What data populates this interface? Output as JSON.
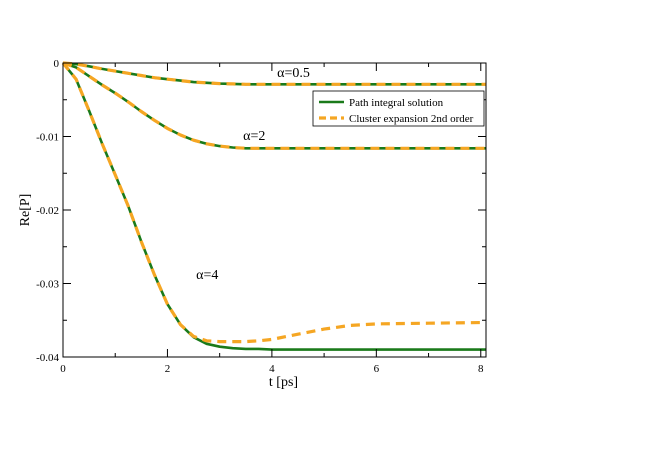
{
  "chart_data": {
    "type": "line",
    "title": "",
    "xlabel": "t [ps]",
    "ylabel": "Re[P]",
    "xlim": [
      0,
      8.1
    ],
    "ylim": [
      -0.04,
      0
    ],
    "xticks": [
      0,
      2,
      4,
      6,
      8
    ],
    "xtick_labels": [
      "0",
      "2",
      "4",
      "6",
      "8"
    ],
    "yticks": [
      0,
      -0.01,
      -0.02,
      -0.03,
      -0.04
    ],
    "ytick_labels": [
      "0",
      "-0.01",
      "-0.02",
      "-0.03",
      "-0.04"
    ],
    "grid": false,
    "legend": {
      "placement": "top-right",
      "entries": [
        {
          "label": "Path integral solution",
          "color": "#1a7a1a",
          "style": "solid"
        },
        {
          "label": "Cluster expansion 2nd order",
          "color": "#f5a623",
          "style": "dashed"
        }
      ]
    },
    "annotations": [
      {
        "text": "α=0.5",
        "x": 4.1,
        "y": -0.0019
      },
      {
        "text": "α=2",
        "x": 3.45,
        "y": -0.0105
      },
      {
        "text": "α=4",
        "x": 2.55,
        "y": -0.0294
      }
    ],
    "series": [
      {
        "group": "α=0.5",
        "method": "path_integral",
        "color": "#1a7a1a",
        "style": "solid",
        "x": [
          0,
          0.25,
          0.5,
          0.75,
          1,
          1.25,
          1.5,
          1.75,
          2,
          2.25,
          2.5,
          2.75,
          3,
          3.25,
          3.5,
          4,
          5,
          6,
          7,
          8.1
        ],
        "y": [
          0,
          -0.00015,
          -0.00045,
          -0.0008,
          -0.0011,
          -0.0014,
          -0.0017,
          -0.002,
          -0.0022,
          -0.0024,
          -0.0026,
          -0.0027,
          -0.0028,
          -0.00285,
          -0.0029,
          -0.0029,
          -0.0029,
          -0.0029,
          -0.0029,
          -0.0029
        ]
      },
      {
        "group": "α=0.5",
        "method": "cluster_expansion",
        "color": "#f5a623",
        "style": "dashed",
        "x": [
          0,
          0.25,
          0.5,
          0.75,
          1,
          1.25,
          1.5,
          1.75,
          2,
          2.25,
          2.5,
          2.75,
          3,
          3.25,
          3.5,
          4,
          5,
          6,
          7,
          8.1
        ],
        "y": [
          0,
          -0.00015,
          -0.00045,
          -0.0008,
          -0.0011,
          -0.0014,
          -0.0017,
          -0.002,
          -0.0022,
          -0.0024,
          -0.0026,
          -0.0027,
          -0.0028,
          -0.00285,
          -0.0029,
          -0.0029,
          -0.0029,
          -0.0029,
          -0.0029,
          -0.0029
        ]
      },
      {
        "group": "α=2",
        "method": "path_integral",
        "color": "#1a7a1a",
        "style": "solid",
        "x": [
          0,
          0.25,
          0.5,
          0.75,
          1,
          1.25,
          1.5,
          1.75,
          2,
          2.25,
          2.5,
          2.75,
          3,
          3.25,
          3.5,
          3.75,
          4,
          5,
          6,
          7,
          8.1
        ],
        "y": [
          0,
          -0.0006,
          -0.0018,
          -0.003,
          -0.0041,
          -0.0053,
          -0.0066,
          -0.0078,
          -0.0089,
          -0.0098,
          -0.0105,
          -0.011,
          -0.0113,
          -0.0115,
          -0.0116,
          -0.0116,
          -0.0116,
          -0.0116,
          -0.0116,
          -0.0116,
          -0.0116
        ]
      },
      {
        "group": "α=2",
        "method": "cluster_expansion",
        "color": "#f5a623",
        "style": "dashed",
        "x": [
          0,
          0.25,
          0.5,
          0.75,
          1,
          1.25,
          1.5,
          1.75,
          2,
          2.25,
          2.5,
          2.75,
          3,
          3.25,
          3.5,
          3.75,
          4,
          5,
          6,
          7,
          8.1
        ],
        "y": [
          0,
          -0.0006,
          -0.0018,
          -0.003,
          -0.0041,
          -0.0053,
          -0.0066,
          -0.0078,
          -0.0089,
          -0.0098,
          -0.0105,
          -0.011,
          -0.0113,
          -0.0115,
          -0.0116,
          -0.0116,
          -0.0116,
          -0.0116,
          -0.0116,
          -0.0116,
          -0.0116
        ]
      },
      {
        "group": "α=4",
        "method": "path_integral",
        "color": "#1a7a1a",
        "style": "solid",
        "x": [
          0,
          0.25,
          0.5,
          0.75,
          1,
          1.25,
          1.5,
          1.75,
          2,
          2.25,
          2.5,
          2.75,
          3,
          3.25,
          3.5,
          3.75,
          4,
          4.5,
          5,
          6,
          7,
          8.1
        ],
        "y": [
          0,
          -0.0022,
          -0.0065,
          -0.011,
          -0.0152,
          -0.0195,
          -0.0243,
          -0.0288,
          -0.0328,
          -0.0356,
          -0.0373,
          -0.0382,
          -0.0386,
          -0.0388,
          -0.0389,
          -0.0389,
          -0.039,
          -0.039,
          -0.039,
          -0.039,
          -0.039,
          -0.039
        ]
      },
      {
        "group": "α=4",
        "method": "cluster_expansion",
        "color": "#f5a623",
        "style": "dashed",
        "x": [
          0,
          0.25,
          0.5,
          0.75,
          1,
          1.25,
          1.5,
          1.75,
          2,
          2.25,
          2.5,
          2.75,
          3,
          3.25,
          3.5,
          3.75,
          4,
          4.5,
          5,
          5.5,
          6,
          7,
          8.1
        ],
        "y": [
          0,
          -0.0022,
          -0.0065,
          -0.011,
          -0.0152,
          -0.0195,
          -0.0243,
          -0.0288,
          -0.0328,
          -0.0356,
          -0.0372,
          -0.0378,
          -0.0379,
          -0.0379,
          -0.0379,
          -0.0378,
          -0.0376,
          -0.0369,
          -0.0362,
          -0.0357,
          -0.0355,
          -0.0354,
          -0.0353
        ]
      }
    ]
  }
}
